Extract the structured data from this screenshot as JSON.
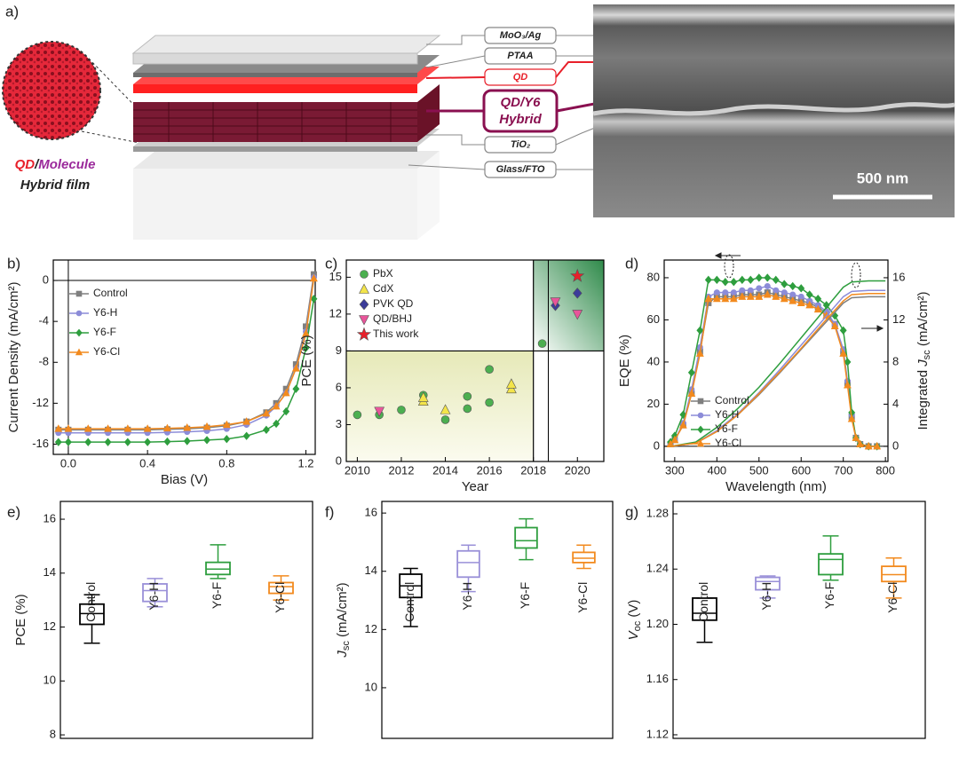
{
  "figure_a": {
    "panel_label": "a)",
    "layers": [
      "MoO₃/Ag",
      "PTAA",
      "QD",
      "TiO₂",
      "Glass/FTO"
    ],
    "hybrid_layer": [
      "QD/Y6",
      "Hybrid"
    ],
    "film_label": {
      "qd": "QD",
      "slash": "/",
      "molecule": "Molecule",
      "hybrid": "Hybrid film"
    },
    "scale_bar": "500 nm"
  },
  "chart_data": [
    {
      "type": "line",
      "panel_label": "b)",
      "xlabel": "Bias (V)",
      "ylabel": "Current Density (mA/cm²)",
      "xlim": [
        -0.076,
        1.247
      ],
      "xticks": [
        {
          "value": 0,
          "label": "0.0"
        },
        0.4,
        0.8,
        1.2
      ],
      "ylim": [
        -17,
        2
      ],
      "yticks": [
        0,
        -4,
        -8,
        -12,
        -16
      ],
      "legend": "center left",
      "x": [
        -0.05,
        0,
        0.1,
        0.2,
        0.3,
        0.4,
        0.5,
        0.6,
        0.7,
        0.8,
        0.9,
        1.0,
        1.05,
        1.1,
        1.15,
        1.2,
        1.24
      ],
      "series": [
        {
          "name": "Control",
          "color": "#7f7f7f",
          "marker": "square",
          "values": [
            -14.6,
            -14.6,
            -14.6,
            -14.6,
            -14.6,
            -14.6,
            -14.55,
            -14.5,
            -14.4,
            -14.2,
            -13.8,
            -12.9,
            -12.0,
            -10.6,
            -8.2,
            -4.5,
            0.6
          ]
        },
        {
          "name": "Y6-H",
          "color": "#8c8cd8",
          "marker": "circle",
          "values": [
            -14.9,
            -14.9,
            -14.9,
            -14.9,
            -14.9,
            -14.9,
            -14.85,
            -14.8,
            -14.7,
            -14.5,
            -14.1,
            -13.2,
            -12.3,
            -11.0,
            -8.6,
            -5.0,
            0.3
          ]
        },
        {
          "name": "Y6-F",
          "color": "#2e9e3e",
          "marker": "diamond",
          "values": [
            -15.8,
            -15.8,
            -15.8,
            -15.8,
            -15.8,
            -15.8,
            -15.75,
            -15.7,
            -15.6,
            -15.5,
            -15.2,
            -14.6,
            -14.0,
            -12.8,
            -10.6,
            -6.6,
            -1.8
          ]
        },
        {
          "name": "Y6-Cl",
          "color": "#f28a1e",
          "marker": "triangle",
          "values": [
            -14.5,
            -14.5,
            -14.5,
            -14.5,
            -14.5,
            -14.5,
            -14.45,
            -14.4,
            -14.3,
            -14.1,
            -13.8,
            -13.0,
            -12.3,
            -11.0,
            -8.6,
            -5.2,
            0.2
          ]
        }
      ]
    },
    {
      "type": "scatter",
      "panel_label": "c)",
      "xlabel": "Year",
      "ylabel": "PCE (%)",
      "xlim": [
        2009.5,
        2021.2
      ],
      "xticks": [
        2010,
        2012,
        2014,
        2016,
        2018,
        2020
      ],
      "ylim": [
        0,
        16.4
      ],
      "yticks": [
        0,
        3,
        6,
        9,
        12,
        15
      ],
      "legend": "upper left",
      "divider_x": 2018,
      "divider_y": 9,
      "series": [
        {
          "name": "PbX",
          "color": "#4caf50",
          "marker": "circle",
          "x": [
            2010,
            2011,
            2012,
            2013,
            2014,
            2015,
            2015,
            2016,
            2016,
            2018.4
          ],
          "values": [
            3.8,
            3.8,
            4.2,
            5.4,
            3.4,
            4.3,
            5.3,
            4.8,
            7.5,
            9.6
          ]
        },
        {
          "name": "CdX",
          "color": "#f3e44a",
          "marker": "triangle",
          "x": [
            2013,
            2013,
            2014,
            2017,
            2017
          ],
          "values": [
            4.9,
            5.2,
            4.2,
            5.9,
            6.3
          ]
        },
        {
          "name": "PVK QD",
          "color": "#3c3c9a",
          "marker": "diamond",
          "x": [
            2019,
            2020
          ],
          "values": [
            12.7,
            13.7
          ]
        },
        {
          "name": "QD/BHJ",
          "color": "#e8559a",
          "marker": "triangle-down",
          "x": [
            2011,
            2019,
            2020
          ],
          "values": [
            4.1,
            13.0,
            12.0
          ]
        },
        {
          "name": "This work",
          "color": "#e8202a",
          "marker": "star",
          "x": [
            2020
          ],
          "values": [
            15.1
          ]
        }
      ]
    },
    {
      "type": "line",
      "panel_label": "d)",
      "xlabel": "Wavelength (nm)",
      "ylabel": "EQE (%)",
      "y2label": "Integrated ",
      "y2label_var": "J",
      "y2label_sub": "sc",
      "y2label_unit": " (mA/cm²)",
      "xlim": [
        275,
        806
      ],
      "xticks": [
        300,
        400,
        500,
        600,
        700,
        800
      ],
      "ylim": [
        -7.2,
        88.4
      ],
      "yticks": [
        0,
        20,
        40,
        60,
        80
      ],
      "y2lim": [
        -1.44,
        17.68
      ],
      "y2ticks": [
        0,
        4,
        8,
        12,
        16
      ],
      "legend": "lower left",
      "series": [
        {
          "name": "Control",
          "color": "#7f7f7f",
          "marker": "square",
          "x": [
            290,
            300,
            320,
            340,
            360,
            380,
            400,
            420,
            440,
            460,
            480,
            500,
            520,
            540,
            560,
            580,
            600,
            620,
            640,
            660,
            680,
            700,
            710,
            720,
            730,
            740,
            760,
            780
          ],
          "values": [
            1,
            3,
            10,
            25,
            45,
            68,
            71,
            71,
            71,
            72,
            72,
            72,
            73,
            72,
            71,
            70,
            69,
            68,
            66,
            63,
            58,
            45,
            30,
            14,
            4,
            1,
            0,
            0
          ]
        },
        {
          "name": "Y6-H",
          "color": "#8c8cd8",
          "marker": "circle",
          "x": [
            290,
            300,
            320,
            340,
            360,
            380,
            400,
            420,
            440,
            460,
            480,
            500,
            520,
            540,
            560,
            580,
            600,
            620,
            640,
            660,
            680,
            700,
            710,
            720,
            730,
            740,
            760,
            780
          ],
          "values": [
            1,
            3,
            11,
            27,
            47,
            71,
            73,
            73,
            73,
            74,
            74,
            75,
            76,
            74,
            73,
            72,
            71,
            69,
            67,
            64,
            58,
            46,
            31,
            15,
            4,
            1,
            0,
            0
          ]
        },
        {
          "name": "Y6-F",
          "color": "#2e9e3e",
          "marker": "diamond",
          "x": [
            290,
            300,
            320,
            340,
            360,
            380,
            400,
            420,
            440,
            460,
            480,
            500,
            520,
            540,
            560,
            580,
            600,
            620,
            640,
            660,
            680,
            700,
            710,
            720,
            730,
            740,
            760,
            780
          ],
          "values": [
            2,
            5,
            15,
            35,
            55,
            79,
            79,
            78,
            78,
            79,
            79,
            80,
            80,
            79,
            77,
            76,
            75,
            72,
            70,
            67,
            62,
            55,
            40,
            16,
            4,
            1,
            0,
            0
          ]
        },
        {
          "name": "Y6-Cl",
          "color": "#f28a1e",
          "marker": "triangle",
          "x": [
            290,
            300,
            320,
            340,
            360,
            380,
            400,
            420,
            440,
            460,
            480,
            500,
            520,
            540,
            560,
            580,
            600,
            620,
            640,
            660,
            680,
            700,
            710,
            720,
            730,
            740,
            760,
            780
          ],
          "values": [
            1,
            3,
            10,
            25,
            44,
            70,
            70,
            70,
            70,
            71,
            71,
            71,
            72,
            71,
            70,
            69,
            68,
            67,
            65,
            62,
            57,
            44,
            29,
            13,
            4,
            1,
            0,
            0
          ]
        },
        {
          "color": "#7f7f7f",
          "axis": "y2",
          "x": [
            290,
            350,
            400,
            450,
            500,
            550,
            600,
            650,
            700,
            720,
            760,
            800
          ],
          "values": [
            0,
            0.3,
            1.4,
            3.0,
            4.9,
            7.0,
            9.2,
            11.4,
            13.6,
            14.1,
            14.2,
            14.2
          ]
        },
        {
          "color": "#8c8cd8",
          "axis": "y2",
          "x": [
            290,
            350,
            400,
            450,
            500,
            550,
            600,
            650,
            700,
            720,
            760,
            800
          ],
          "values": [
            0,
            0.3,
            1.5,
            3.1,
            5.1,
            7.3,
            9.6,
            11.9,
            14.2,
            14.7,
            14.8,
            14.8
          ]
        },
        {
          "color": "#2e9e3e",
          "axis": "y2",
          "x": [
            290,
            350,
            400,
            450,
            500,
            550,
            600,
            650,
            700,
            720,
            760,
            800
          ],
          "values": [
            0,
            0.4,
            1.8,
            3.6,
            5.6,
            7.9,
            10.3,
            12.7,
            15.1,
            15.6,
            15.7,
            15.7
          ]
        },
        {
          "color": "#f28a1e",
          "axis": "y2",
          "x": [
            290,
            350,
            400,
            450,
            500,
            550,
            600,
            650,
            700,
            720,
            760,
            800
          ],
          "values": [
            0,
            0.3,
            1.4,
            3.0,
            5.0,
            7.1,
            9.3,
            11.6,
            13.8,
            14.4,
            14.5,
            14.5
          ]
        }
      ]
    },
    {
      "type": "box",
      "panel_label": "e)",
      "ylabel": "PCE (%)",
      "ylim": [
        7.87,
        16.66
      ],
      "yticks": [
        8,
        10,
        12,
        14,
        16
      ],
      "categories": [
        "Control",
        "Y6-H",
        "Y6-F",
        "Y6-Cl"
      ],
      "colors": [
        "#000000",
        "#9a90d8",
        "#2e9e3e",
        "#f28a1e"
      ],
      "whislo": [
        11.4,
        12.75,
        13.8,
        13.0
      ],
      "q1": [
        12.1,
        12.95,
        13.95,
        13.25
      ],
      "median": [
        12.5,
        13.35,
        14.15,
        13.5
      ],
      "q3": [
        12.85,
        13.6,
        14.4,
        13.65
      ],
      "whishi": [
        13.2,
        13.8,
        15.05,
        13.9
      ]
    },
    {
      "type": "box",
      "panel_label": "f)",
      "ylabel_var": "J",
      "ylabel_sub": "sc",
      "ylabel_unit": " (mA/cm²)",
      "ylim": [
        8.26,
        16.4
      ],
      "yticks": [
        10,
        12,
        14,
        16
      ],
      "categories": [
        "Control",
        "Y6-H",
        "Y6-F",
        "Y6-Cl"
      ],
      "colors": [
        "#000000",
        "#9a90d8",
        "#2e9e3e",
        "#f28a1e"
      ],
      "whislo": [
        12.1,
        13.3,
        14.4,
        14.1
      ],
      "q1": [
        13.1,
        13.8,
        14.8,
        14.3
      ],
      "median": [
        13.5,
        14.3,
        15.05,
        14.45
      ],
      "q3": [
        13.9,
        14.7,
        15.5,
        14.65
      ],
      "whishi": [
        14.1,
        14.9,
        15.8,
        14.9
      ]
    },
    {
      "type": "box",
      "panel_label": "g)",
      "ylabel_var": "V",
      "ylabel_sub": "oc",
      "ylabel_unit": " (V)",
      "ylim": [
        1.1174,
        1.289
      ],
      "yticks": [
        1.12,
        1.16,
        {
          "value": 1.2,
          "label": "1.20"
        },
        1.24,
        1.28
      ],
      "categories": [
        "Control",
        "Y6-H",
        "Y6-F",
        "Y6-Cl"
      ],
      "colors": [
        "#000000",
        "#9a90d8",
        "#2e9e3e",
        "#f28a1e"
      ],
      "whislo": [
        1.187,
        1.219,
        1.232,
        1.219
      ],
      "q1": [
        1.203,
        1.225,
        1.236,
        1.231
      ],
      "median": [
        1.208,
        1.231,
        1.247,
        1.236
      ],
      "q3": [
        1.219,
        1.234,
        1.251,
        1.242
      ],
      "whishi": [
        1.219,
        1.235,
        1.264,
        1.248
      ]
    }
  ]
}
